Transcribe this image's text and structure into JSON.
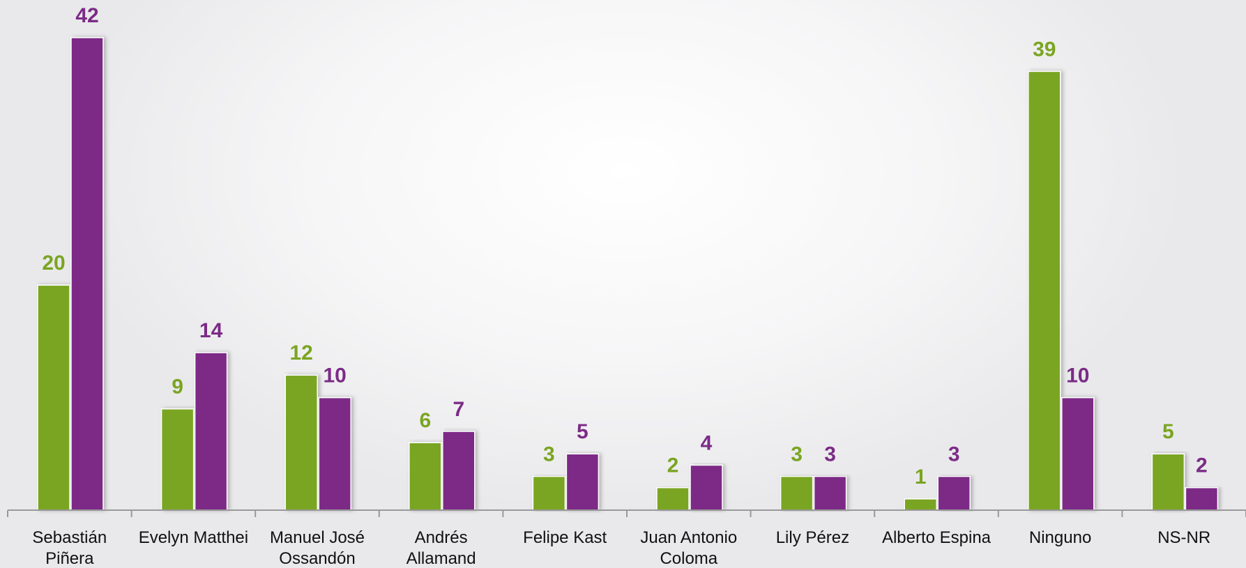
{
  "chart_data": {
    "type": "bar",
    "categories": [
      "Sebastián Piñera",
      "Evelyn Matthei",
      "Manuel José Ossandón",
      "Andrés Allamand",
      "Felipe Kast",
      "Juan Antonio Coloma",
      "Lily Pérez",
      "Alberto Espina",
      "Ninguno",
      "NS-NR"
    ],
    "series": [
      {
        "color": "#7aa521",
        "values": [
          20,
          9,
          12,
          6,
          3,
          2,
          3,
          1,
          39,
          5
        ]
      },
      {
        "color": "#7b2c86",
        "values": [
          42,
          14,
          10,
          7,
          5,
          4,
          3,
          3,
          10,
          2
        ]
      }
    ]
  }
}
